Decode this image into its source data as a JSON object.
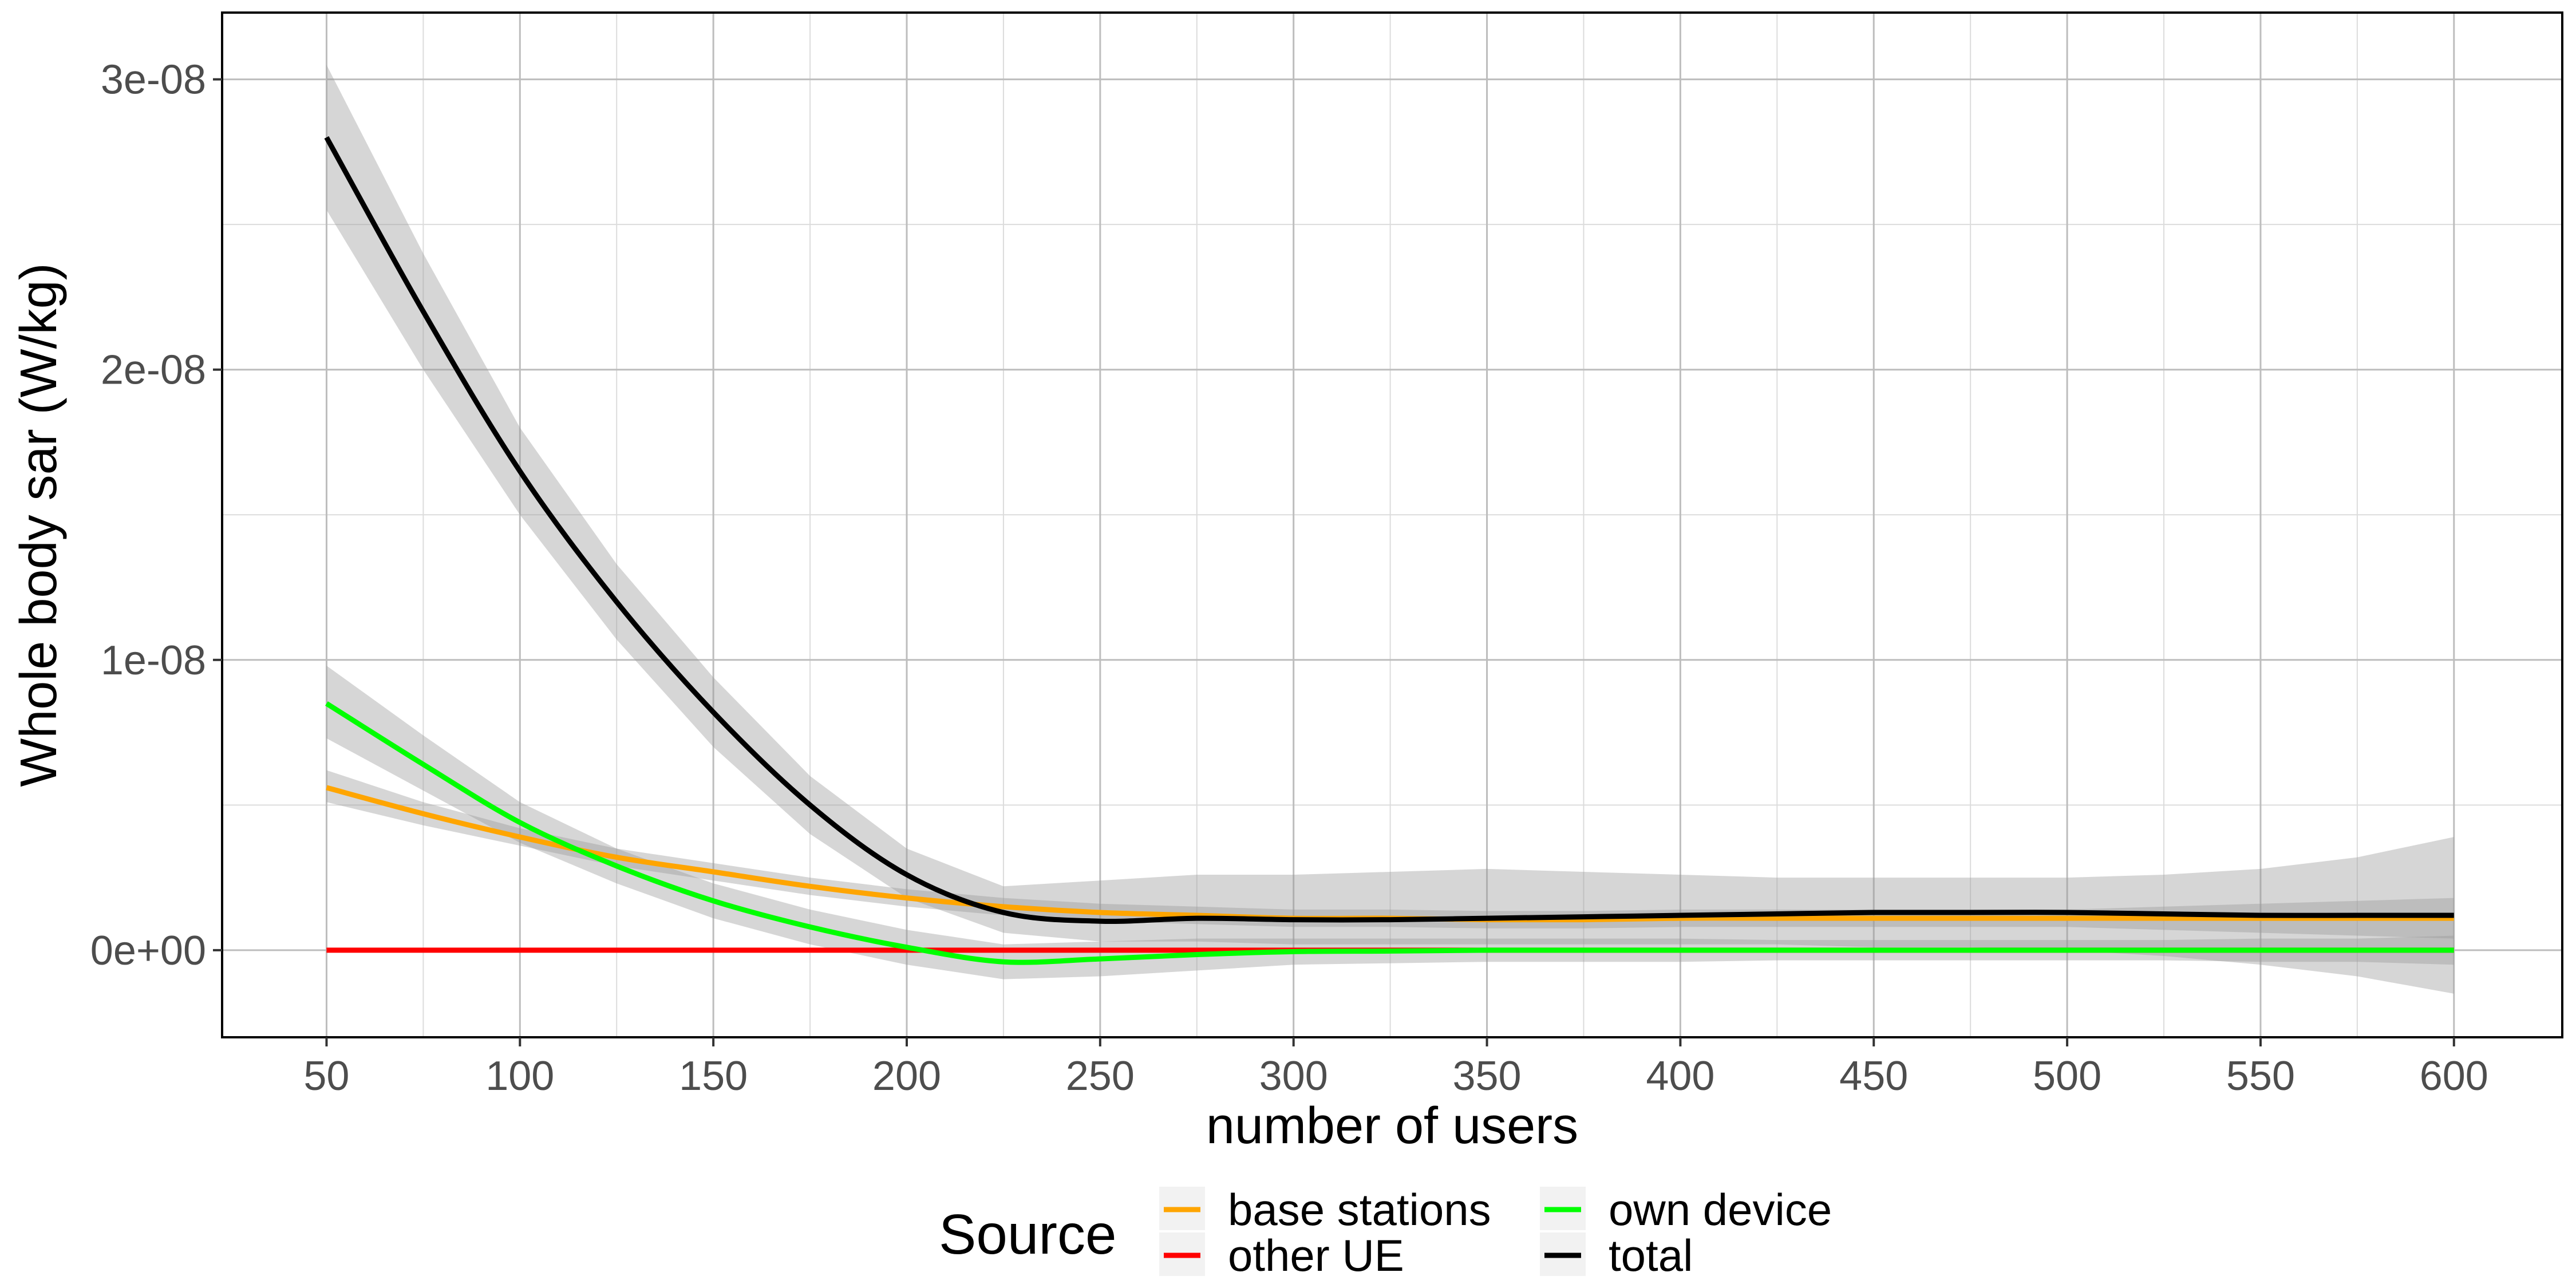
{
  "chart_data": {
    "type": "line",
    "xlabel": "number of users",
    "ylabel": "Whole body sar (W/kg)",
    "xlim": [
      23,
      628
    ],
    "ylim": [
      -3e-09,
      3.23e-08
    ],
    "x_ticks": [
      50,
      100,
      150,
      200,
      250,
      300,
      350,
      400,
      450,
      500,
      550,
      600
    ],
    "x_tick_labels": [
      "50",
      "100",
      "150",
      "200",
      "250",
      "300",
      "350",
      "400",
      "450",
      "500",
      "550",
      "600"
    ],
    "y_ticks": [
      0,
      1e-08,
      2e-08,
      3e-08
    ],
    "y_tick_labels": [
      "0e+00",
      "1e-08",
      "2e-08",
      "3e-08"
    ],
    "grid": true,
    "legend": {
      "title": "Source",
      "position": "bottom",
      "entries": [
        "base stations",
        "other UE",
        "own device",
        "total"
      ]
    },
    "x": [
      50,
      75,
      100,
      125,
      150,
      175,
      200,
      225,
      250,
      275,
      300,
      325,
      350,
      375,
      400,
      425,
      450,
      475,
      500,
      525,
      550,
      575,
      600
    ],
    "series": [
      {
        "name": "base stations",
        "color": "#FFA500",
        "values": [
          5.6e-09,
          4.7e-09,
          3.9e-09,
          3.2e-09,
          2.7e-09,
          2.2e-09,
          1.8e-09,
          1.5e-09,
          1.3e-09,
          1.2e-09,
          1.1e-09,
          1.1e-09,
          1.05e-09,
          1.05e-09,
          1.1e-09,
          1.1e-09,
          1.1e-09,
          1.1e-09,
          1.1e-09,
          1.1e-09,
          1.1e-09,
          1.1e-09,
          1.1e-09
        ],
        "lower": [
          5.1e-09,
          4.3e-09,
          3.6e-09,
          2.9e-09,
          2.4e-09,
          1.9e-09,
          1.5e-09,
          1.2e-09,
          1e-09,
          9e-10,
          8e-10,
          8e-10,
          7.5e-10,
          7.5e-10,
          8e-10,
          8e-10,
          8e-10,
          8e-10,
          8e-10,
          7e-10,
          6e-10,
          5e-10,
          4e-10
        ],
        "upper": [
          6.2e-09,
          5.1e-09,
          4.2e-09,
          3.5e-09,
          3e-09,
          2.5e-09,
          2.1e-09,
          1.8e-09,
          1.6e-09,
          1.5e-09,
          1.4e-09,
          1.4e-09,
          1.35e-09,
          1.35e-09,
          1.4e-09,
          1.4e-09,
          1.4e-09,
          1.4e-09,
          1.4e-09,
          1.5e-09,
          1.6e-09,
          1.7e-09,
          1.8e-09
        ]
      },
      {
        "name": "other UE",
        "color": "#FF0000",
        "values": [
          0,
          0,
          0,
          0,
          0,
          0,
          0,
          0,
          0,
          0,
          0,
          0,
          0,
          0,
          0,
          0,
          0,
          0,
          0,
          0,
          0,
          0,
          0
        ]
      },
      {
        "name": "own device",
        "color": "#00FF00",
        "values": [
          8.5e-09,
          6.4e-09,
          4.4e-09,
          2.9e-09,
          1.7e-09,
          8e-10,
          1e-10,
          -4e-10,
          -3e-10,
          -1.5e-10,
          -5e-11,
          -3e-11,
          0,
          0,
          0,
          0,
          0,
          0,
          0,
          0,
          0,
          0,
          0
        ],
        "lower": [
          7.3e-09,
          5.5e-09,
          3.7e-09,
          2.3e-09,
          1.1e-09,
          2e-10,
          -5e-10,
          -1e-09,
          -9e-10,
          -7e-10,
          -5e-10,
          -4.5e-10,
          -4e-10,
          -4e-10,
          -4e-10,
          -3.5e-10,
          -3.5e-10,
          -3.5e-10,
          -3.5e-10,
          -3.5e-10,
          -4e-10,
          -4e-10,
          -5e-10
        ],
        "upper": [
          9.8e-09,
          7.4e-09,
          5.1e-09,
          3.5e-09,
          2.3e-09,
          1.4e-09,
          7e-10,
          2e-10,
          3e-10,
          4e-10,
          4e-10,
          4e-10,
          4e-10,
          4e-10,
          4e-10,
          3.5e-10,
          3.5e-10,
          3.5e-10,
          3.5e-10,
          3.5e-10,
          4e-10,
          4e-10,
          5e-10
        ]
      },
      {
        "name": "total",
        "color": "#000000",
        "values": [
          2.8e-08,
          2.2e-08,
          1.65e-08,
          1.2e-08,
          8.2e-09,
          5e-09,
          2.6e-09,
          1.3e-09,
          1e-09,
          1.1e-09,
          1.05e-09,
          1.05e-09,
          1.1e-09,
          1.15e-09,
          1.2e-09,
          1.25e-09,
          1.3e-09,
          1.3e-09,
          1.3e-09,
          1.25e-09,
          1.2e-09,
          1.2e-09,
          1.2e-09
        ],
        "lower": [
          2.55e-08,
          2e-08,
          1.5e-08,
          1.07e-08,
          7e-09,
          4e-09,
          1.8e-09,
          6e-10,
          3e-10,
          3e-10,
          2e-10,
          2e-10,
          2e-10,
          2e-10,
          2e-10,
          2e-10,
          1e-10,
          1e-10,
          0,
          -2e-10,
          -5e-10,
          -9e-10,
          -1.5e-09
        ],
        "upper": [
          3.05e-08,
          2.4e-08,
          1.8e-08,
          1.33e-08,
          9.4e-09,
          6e-09,
          3.5e-09,
          2.2e-09,
          2.4e-09,
          2.6e-09,
          2.6e-09,
          2.7e-09,
          2.8e-09,
          2.7e-09,
          2.6e-09,
          2.5e-09,
          2.5e-09,
          2.5e-09,
          2.5e-09,
          2.6e-09,
          2.8e-09,
          3.2e-09,
          3.9e-09
        ]
      }
    ]
  }
}
